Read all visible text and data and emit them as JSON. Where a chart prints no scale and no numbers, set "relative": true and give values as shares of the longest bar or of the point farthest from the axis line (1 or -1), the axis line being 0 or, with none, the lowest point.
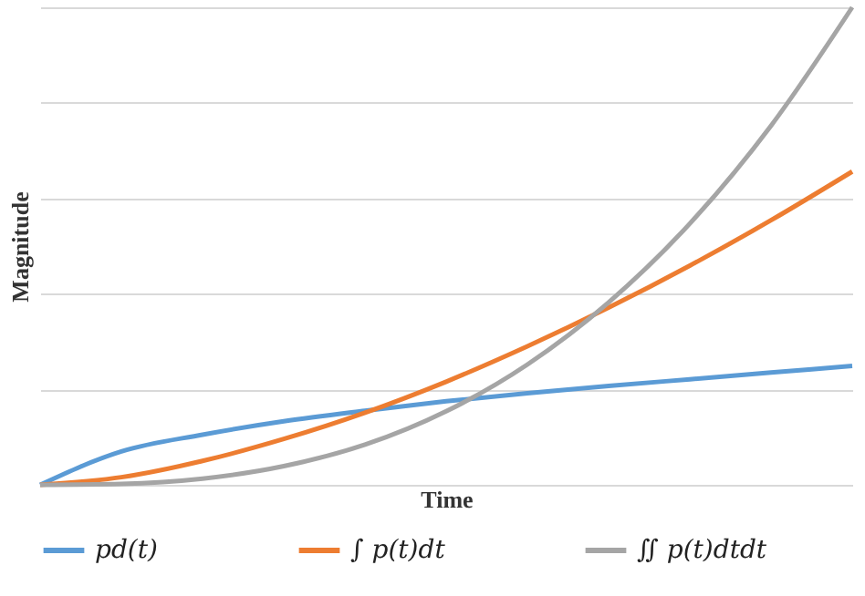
{
  "chart_data": {
    "type": "line",
    "relative": true,
    "xlabel": "Time",
    "ylabel": "Magnitude",
    "grid": "y",
    "legend": "bottom",
    "categories": [
      null,
      null,
      null,
      null,
      null,
      null,
      null,
      null,
      null,
      null,
      null
    ],
    "series": [
      {
        "name": "pd(t)",
        "color": "#5b9bd5",
        "values": [
          0,
          0.07,
          0.105,
          0.133,
          0.155,
          0.175,
          0.192,
          0.207,
          0.221,
          0.235,
          0.249
        ]
      },
      {
        "name": "∫ p(t)dt",
        "color": "#ed7d31",
        "values": [
          0,
          0.016,
          0.05,
          0.096,
          0.151,
          0.216,
          0.29,
          0.371,
          0.459,
          0.554,
          0.656
        ]
      },
      {
        "name": "∬ p(t)dtdt",
        "color": "#a5a5a5",
        "values": [
          0,
          0.002,
          0.013,
          0.039,
          0.084,
          0.154,
          0.252,
          0.382,
          0.547,
          0.752,
          1
        ]
      }
    ]
  }
}
